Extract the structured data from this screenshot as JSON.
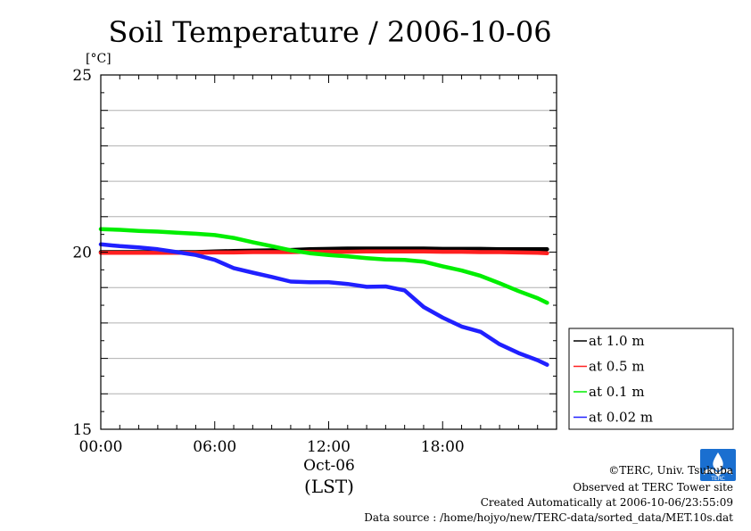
{
  "chart_data": {
    "type": "line",
    "title": "Soil Temperature / 2006-10-06",
    "y_unit": "[°C]",
    "ylim": [
      15,
      25
    ],
    "y_ticks": [
      "15",
      "20",
      "25"
    ],
    "xlim": [
      0,
      24
    ],
    "x_ticks": [
      "00:00",
      "06:00",
      "12:00",
      "18:00"
    ],
    "x_date_label": "Oct-06",
    "x_axis_label": "(LST)",
    "grid": true,
    "legend_position": "right",
    "x": [
      0,
      1,
      2,
      3,
      4,
      5,
      6,
      7,
      8,
      9,
      10,
      11,
      12,
      13,
      14,
      15,
      16,
      17,
      18,
      19,
      20,
      21,
      22,
      23,
      23.5
    ],
    "series": [
      {
        "name": "at 1.0 m",
        "color": "#000000",
        "values": [
          20.0,
          20.0,
          20.0,
          20.0,
          20.0,
          20.0,
          20.02,
          20.03,
          20.04,
          20.05,
          20.06,
          20.08,
          20.09,
          20.1,
          20.1,
          20.1,
          20.1,
          20.1,
          20.09,
          20.09,
          20.09,
          20.08,
          20.08,
          20.08,
          20.08
        ]
      },
      {
        "name": "at 0.5 m",
        "color": "#ff2020",
        "values": [
          19.98,
          19.98,
          19.98,
          19.98,
          19.98,
          19.98,
          19.99,
          19.99,
          20.0,
          20.0,
          20.0,
          20.01,
          20.01,
          20.01,
          20.02,
          20.02,
          20.02,
          20.02,
          20.01,
          20.01,
          20.0,
          20.0,
          19.99,
          19.98,
          19.97
        ]
      },
      {
        "name": "at 0.1 m",
        "color": "#00ee00",
        "values": [
          20.65,
          20.63,
          20.6,
          20.58,
          20.55,
          20.52,
          20.48,
          20.4,
          20.28,
          20.17,
          20.05,
          19.97,
          19.92,
          19.88,
          19.83,
          19.79,
          19.78,
          19.73,
          19.6,
          19.48,
          19.33,
          19.12,
          18.9,
          18.7,
          18.57
        ]
      },
      {
        "name": "at 0.02 m",
        "color": "#2020ff",
        "values": [
          20.22,
          20.17,
          20.13,
          20.08,
          20.0,
          19.92,
          19.78,
          19.55,
          19.42,
          19.3,
          19.17,
          19.15,
          19.15,
          19.1,
          19.02,
          19.03,
          18.92,
          18.45,
          18.15,
          17.9,
          17.75,
          17.4,
          17.15,
          16.95,
          16.82
        ]
      }
    ]
  },
  "credits": {
    "copyright": "©TERC, Univ. Tsukuba",
    "observed": "Observed at TERC Tower site",
    "created": "Created Automatically at 2006-10-06/23:55:09",
    "source": "Data source : /home/hojyo/new/TERC-data/sorted_data/MET.10s.dat",
    "logo_text": "TERC"
  }
}
